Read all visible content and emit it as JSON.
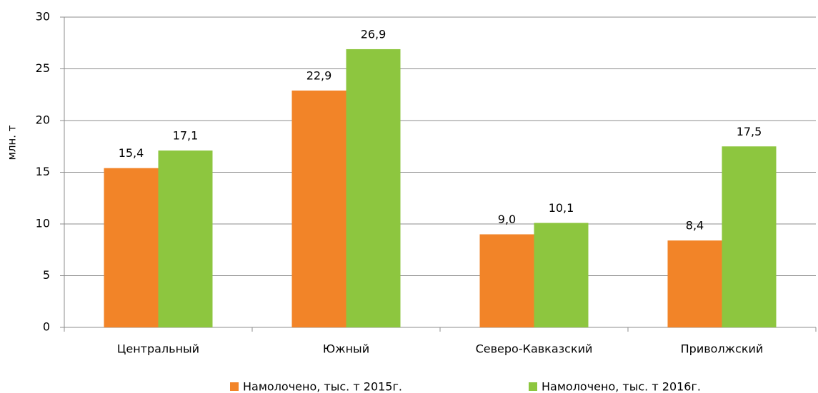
{
  "chart_data": {
    "type": "bar",
    "y_label": "млн. т",
    "categories": [
      "Центральный",
      "Южный",
      "Северо-Кавказский",
      "Приволжский"
    ],
    "series": [
      {
        "name": "Намолочено, тыс. т 2015г.",
        "color": "#f28428",
        "values": [
          15.4,
          22.9,
          9.0,
          8.4
        ],
        "value_labels": [
          "15,4",
          "22,9",
          "9,0",
          "8,4"
        ]
      },
      {
        "name": "Намолочено, тыс. т 2016г.",
        "color": "#8dc63f",
        "values": [
          17.1,
          26.9,
          10.1,
          17.5
        ],
        "value_labels": [
          "17,1",
          "26,9",
          "10,1",
          "17,5"
        ]
      }
    ],
    "ylim": [
      0,
      30
    ],
    "yticks": [
      0,
      5,
      10,
      15,
      20,
      25,
      30
    ],
    "grid": true,
    "legend": "bottom"
  }
}
